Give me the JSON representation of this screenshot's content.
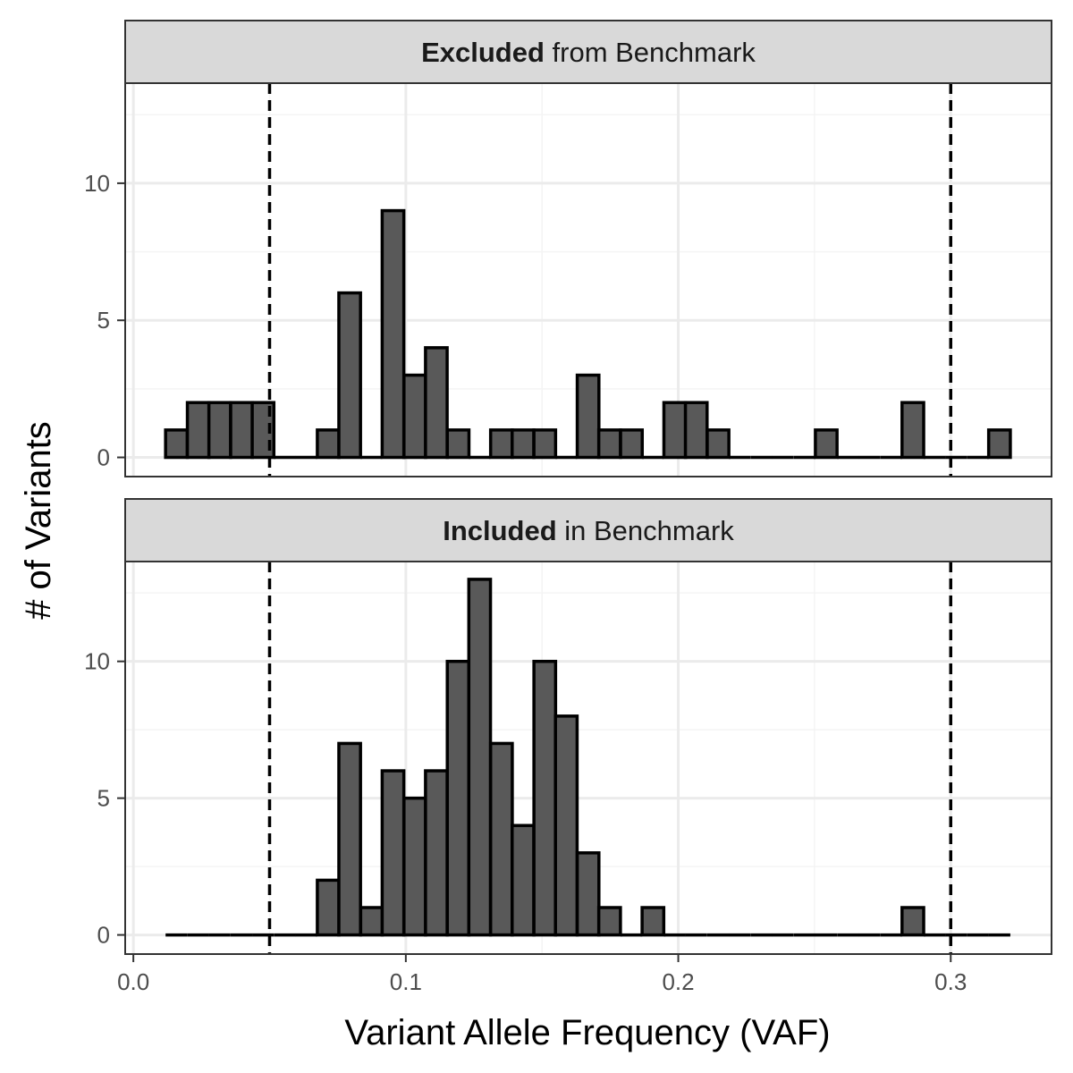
{
  "chart_data": {
    "type": "bar",
    "subtype": "faceted-histogram",
    "xlabel": "Variant Allele Frequency (VAF)",
    "ylabel": "# of Variants",
    "xlim": [
      -0.003,
      0.337
    ],
    "ylim": [
      -0.7,
      13.65
    ],
    "x_ticks": [
      0.0,
      0.1,
      0.2,
      0.3
    ],
    "x_tick_labels": [
      "0.0",
      "0.1",
      "0.2",
      "0.3"
    ],
    "y_ticks": [
      0,
      5,
      10
    ],
    "y_tick_labels": [
      "0",
      "5",
      "10"
    ],
    "grid": true,
    "bin_width": 0.00795,
    "bin_centers": [
      0.0158,
      0.0238,
      0.0317,
      0.0397,
      0.0476,
      0.0556,
      0.0635,
      0.0715,
      0.0794,
      0.0874,
      0.0953,
      0.1033,
      0.1112,
      0.1192,
      0.1271,
      0.1351,
      0.143,
      0.151,
      0.1589,
      0.1669,
      0.1748,
      0.1828,
      0.1907,
      0.1987,
      0.2066,
      0.2146,
      0.2225,
      0.2305,
      0.2384,
      0.2464,
      0.2543,
      0.2623,
      0.2702,
      0.2782,
      0.2861,
      0.2941,
      0.302,
      0.31,
      0.3179
    ],
    "reference_lines": [
      0.05,
      0.3
    ],
    "panels": [
      {
        "label_bold": "Excluded",
        "label_rest": " from Benchmark",
        "counts": [
          1,
          2,
          2,
          2,
          2,
          0,
          0,
          1,
          6,
          0,
          9,
          3,
          4,
          1,
          0,
          1,
          1,
          1,
          0,
          3,
          1,
          1,
          0,
          2,
          2,
          1,
          0,
          0,
          0,
          0,
          1,
          0,
          0,
          0,
          2,
          0,
          0,
          0,
          1
        ]
      },
      {
        "label_bold": "Included",
        "label_rest": " in Benchmark",
        "counts": [
          0,
          0,
          0,
          0,
          0,
          0,
          0,
          2,
          7,
          1,
          6,
          5,
          6,
          10,
          13,
          7,
          4,
          10,
          8,
          3,
          1,
          0,
          1,
          0,
          0,
          0,
          0,
          0,
          0,
          0,
          0,
          0,
          0,
          0,
          1,
          0,
          0,
          0,
          0
        ]
      }
    ],
    "colors": {
      "bar_fill": "#595959",
      "bar_stroke": "#000000",
      "strip_fill": "#d9d9d9",
      "grid_major": "#ebebeb",
      "grid_minor": "#f4f4f4",
      "panel_border": "#333333"
    }
  }
}
